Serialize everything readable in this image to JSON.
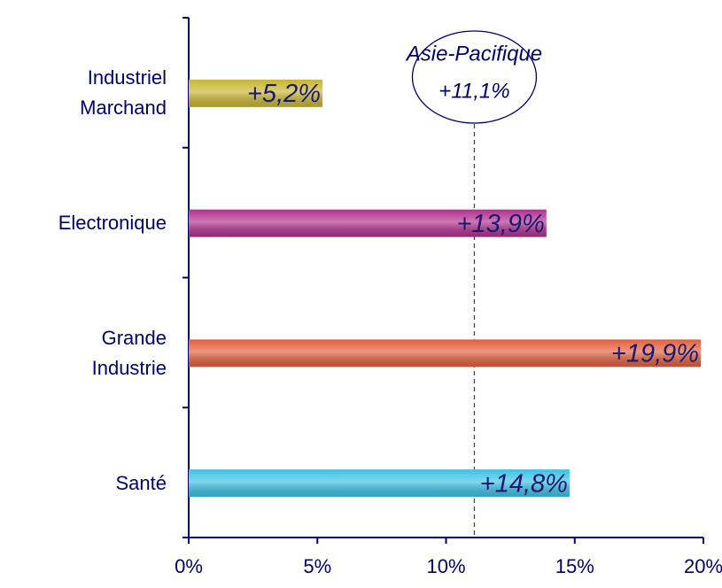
{
  "chart_data": {
    "type": "bar",
    "orientation": "horizontal",
    "categories": [
      "Industriel\nMarchand",
      "Electronique",
      "Grande\nIndustrie",
      "Santé"
    ],
    "values": [
      5.2,
      13.9,
      19.9,
      14.8
    ],
    "value_labels": [
      "+5,2%",
      "+13,9%",
      "+19,9%",
      "+14,8%"
    ],
    "colors": [
      "#c8b632",
      "#b2308f",
      "#e2603e",
      "#3cc2e4"
    ],
    "xlim": [
      0,
      20
    ],
    "xticks": [
      {
        "value": 0,
        "label": "0%"
      },
      {
        "value": 5,
        "label": "5%"
      },
      {
        "value": 10,
        "label": "10%"
      },
      {
        "value": 15,
        "label": "15%"
      },
      {
        "value": 20,
        "label": "20%"
      }
    ],
    "reference_line": {
      "name": "Asie-Pacifique",
      "value": 11.1,
      "label": "+11,1%"
    }
  }
}
